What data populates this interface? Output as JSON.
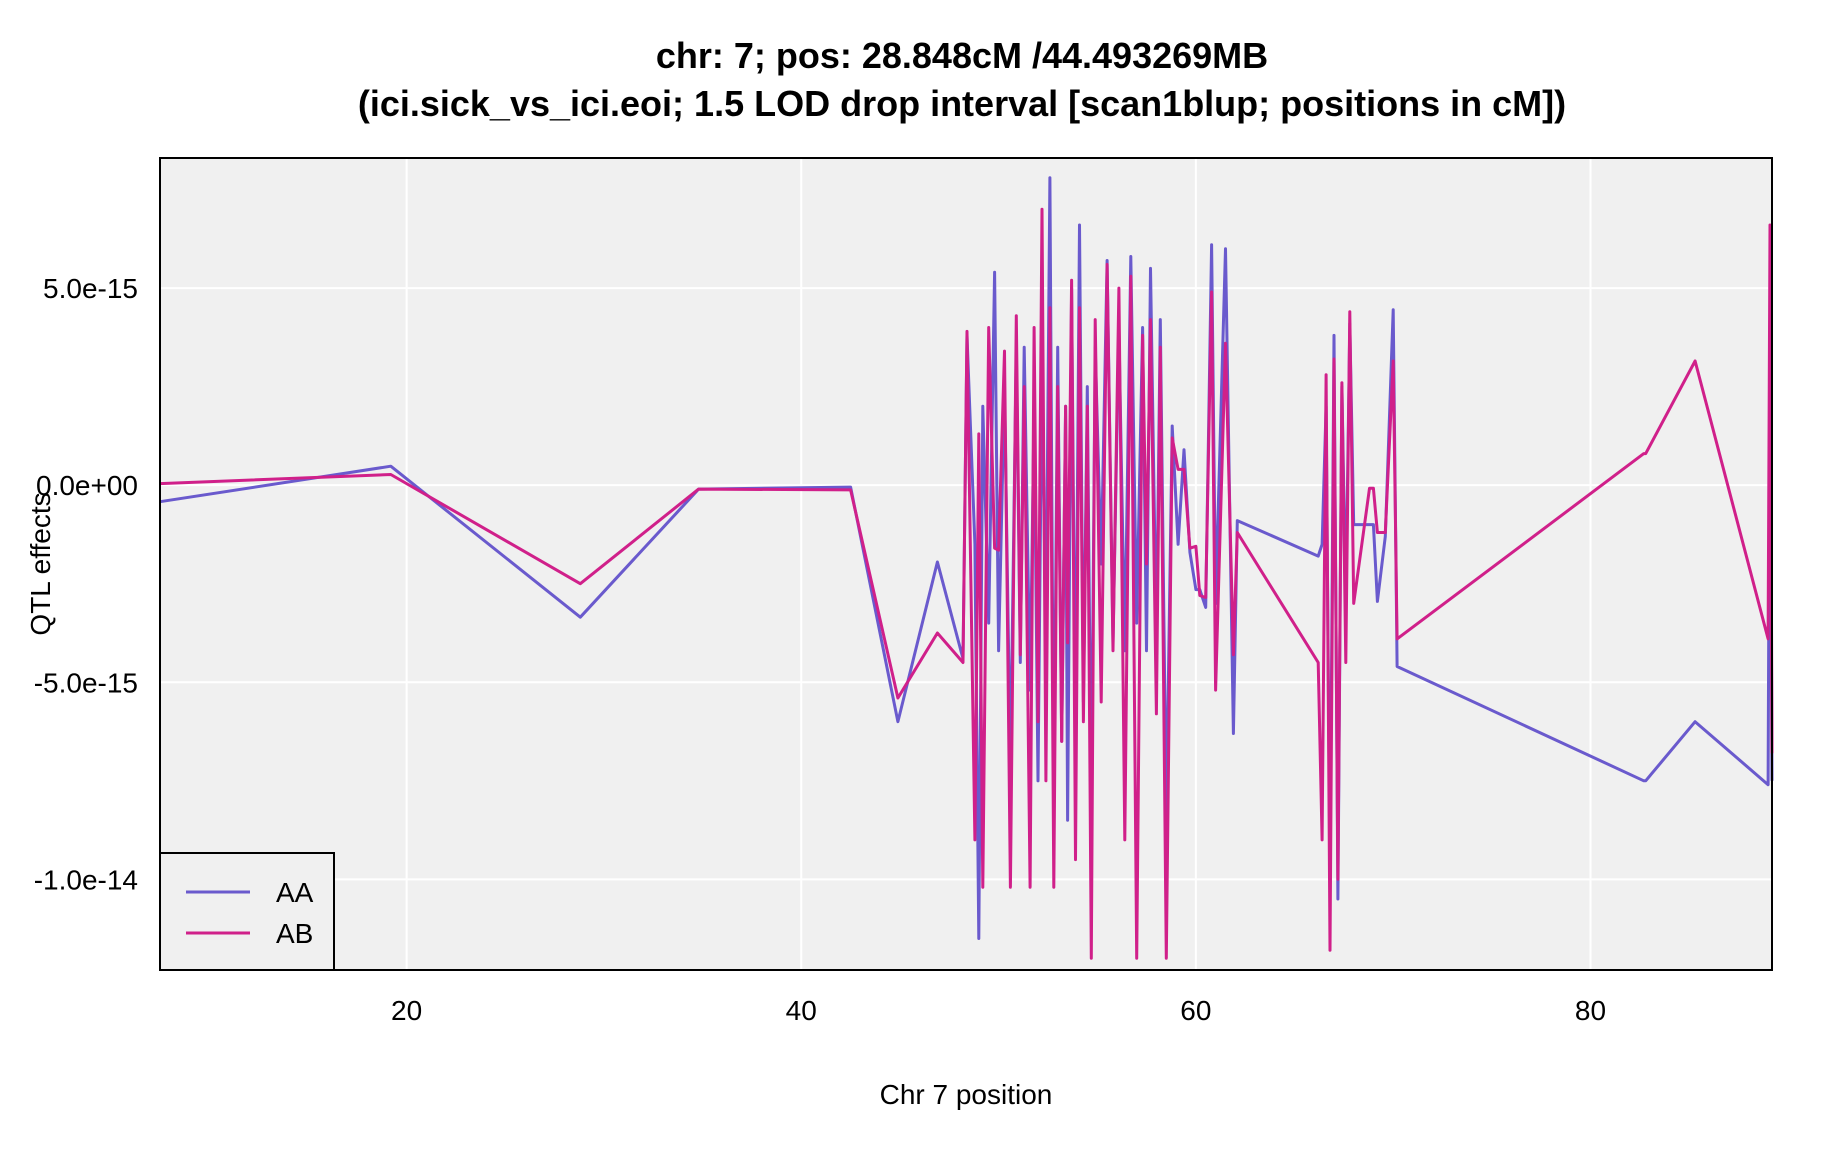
{
  "chart_data": {
    "type": "line",
    "title": "chr: 7; pos: 28.848cM /44.493269MB",
    "subtitle": "(ici.sick_vs_ici.eoi; 1.5 LOD drop interval [scan1blup; positions in cM])",
    "xlabel": "Chr 7 position",
    "ylabel": "QTL effects",
    "xlim": [
      7.5,
      89.2
    ],
    "ylim": [
      -1.23e-14,
      8.3e-15
    ],
    "x_ticks": [
      20,
      40,
      60,
      80
    ],
    "x_tick_labels": [
      "20",
      "40",
      "60",
      "80"
    ],
    "y_ticks": [
      5e-15,
      0,
      -5e-15,
      -1e-14
    ],
    "y_tick_labels": [
      "5.0e-15",
      "0.0e+00",
      "-5.0e-15",
      "-1.0e-14"
    ],
    "grid": true,
    "legend_position": "bottom-left",
    "series": [
      {
        "name": "AA",
        "color": "#6a5acd",
        "x": [
          7.5,
          19.2,
          28.8,
          34.8,
          42.5,
          44.9,
          46.9,
          48.2,
          48.4,
          48.8,
          49.0,
          49.2,
          49.5,
          49.8,
          50.0,
          50.3,
          50.6,
          50.9,
          51.1,
          51.3,
          51.6,
          51.8,
          52.0,
          52.2,
          52.4,
          52.6,
          52.8,
          53.0,
          53.2,
          53.4,
          53.5,
          53.7,
          53.9,
          54.1,
          54.3,
          54.5,
          54.7,
          54.9,
          55.2,
          55.5,
          55.8,
          56.1,
          56.4,
          56.7,
          57.0,
          57.3,
          57.5,
          57.7,
          58.0,
          58.2,
          58.5,
          58.8,
          59.1,
          59.4,
          59.7,
          60.0,
          60.2,
          60.5,
          60.8,
          61.0,
          61.5,
          61.9,
          62.1,
          66.2,
          66.4,
          66.6,
          66.8,
          67.0,
          67.2,
          67.4,
          67.6,
          67.8,
          68.0,
          68.8,
          69.0,
          69.2,
          69.6,
          70.0,
          70.2,
          82.7,
          82.8,
          85.3,
          89.0,
          89.1,
          89.2
        ],
        "values": [
          -4.2e-16,
          4.8e-16,
          -3.35e-15,
          -1e-16,
          -5e-17,
          -6e-15,
          -1.95e-15,
          -4.4e-15,
          3.8e-15,
          -1.5e-15,
          -1.15e-14,
          2e-15,
          -3.5e-15,
          5.4e-15,
          -4.2e-15,
          2.5e-15,
          -7.2e-15,
          3.5e-15,
          -4.5e-15,
          3.5e-15,
          -5.2e-15,
          2e-15,
          -7.5e-15,
          3e-15,
          -4e-15,
          7.8e-15,
          -8.5e-15,
          3.5e-15,
          -6.5e-15,
          2e-15,
          -8.5e-15,
          5e-15,
          -6.5e-15,
          6.6e-15,
          -5.5e-15,
          2.5e-15,
          -8.3e-15,
          3.5e-15,
          -2e-15,
          5.7e-15,
          -4e-15,
          4e-15,
          -4.2e-15,
          5.8e-15,
          -3.5e-15,
          4e-15,
          -4.2e-15,
          5.5e-15,
          -4e-15,
          4.2e-15,
          -8.5e-15,
          1.5e-15,
          -1.5e-15,
          9e-16,
          -1.7e-15,
          -2.65e-15,
          -2.65e-15,
          -3.1e-15,
          6.1e-15,
          -3e-15,
          6e-15,
          -6.3e-15,
          -9e-16,
          -1.8e-15,
          -1.5e-15,
          2e-15,
          -1e-14,
          3.8e-15,
          -1.05e-14,
          2.5e-15,
          -3e-15,
          4.1e-15,
          -1e-15,
          -1e-15,
          -1e-15,
          -2.95e-15,
          -1.3e-15,
          4.45e-15,
          -4.6e-15,
          -7.5e-15,
          -7.5e-15,
          -6e-15,
          -7.6e-15,
          4.3e-15,
          -7.5e-15
        ]
      },
      {
        "name": "AB",
        "color": "#d0208a",
        "x": [
          7.5,
          19.2,
          28.8,
          34.8,
          42.5,
          44.9,
          46.9,
          48.2,
          48.4,
          48.8,
          49.0,
          49.2,
          49.5,
          49.8,
          50.0,
          50.3,
          50.6,
          50.9,
          51.1,
          51.3,
          51.6,
          51.8,
          52.0,
          52.2,
          52.4,
          52.6,
          52.8,
          53.0,
          53.2,
          53.4,
          53.5,
          53.7,
          53.9,
          54.1,
          54.3,
          54.5,
          54.7,
          54.9,
          55.2,
          55.5,
          55.8,
          56.1,
          56.4,
          56.7,
          57.0,
          57.3,
          57.5,
          57.7,
          58.0,
          58.2,
          58.5,
          58.8,
          59.1,
          59.4,
          59.7,
          60.0,
          60.2,
          60.5,
          60.8,
          61.0,
          61.5,
          61.9,
          62.1,
          66.2,
          66.4,
          66.6,
          66.8,
          67.0,
          67.2,
          67.4,
          67.6,
          67.8,
          68.0,
          68.8,
          69.0,
          69.2,
          69.6,
          70.0,
          70.2,
          82.7,
          82.8,
          85.3,
          89.0,
          89.1,
          89.2
        ],
        "values": [
          4e-17,
          2.7e-16,
          -2.5e-15,
          -1e-16,
          -1.2e-16,
          -5.4e-15,
          -3.75e-15,
          -4.5e-15,
          3.9e-15,
          -9e-15,
          1.3e-15,
          -1.02e-14,
          4e-15,
          -1.6e-15,
          -1.65e-15,
          3.4e-15,
          -1.02e-14,
          4.3e-15,
          -4.3e-15,
          2.5e-15,
          -1.02e-14,
          4e-15,
          -6e-15,
          7e-15,
          -7.5e-15,
          4.5e-15,
          -1.02e-14,
          2.5e-15,
          -6.5e-15,
          2e-15,
          -4e-15,
          5.2e-15,
          -9.5e-15,
          4.5e-15,
          -6e-15,
          2e-15,
          -1.2e-14,
          4.2e-15,
          -5.5e-15,
          5.6e-15,
          -4.2e-15,
          5e-15,
          -9e-15,
          5.3e-15,
          -1.2e-14,
          3.8e-15,
          -2e-15,
          4.2e-15,
          -5.8e-15,
          3.5e-15,
          -1.2e-14,
          1.2e-15,
          4e-16,
          4e-16,
          -1.6e-15,
          -1.55e-15,
          -2.8e-15,
          -2.85e-15,
          4.9e-15,
          -5.2e-15,
          3.6e-15,
          -4.3e-15,
          -1.2e-15,
          -4.5e-15,
          -9e-15,
          2.8e-15,
          -1.18e-14,
          3.2e-15,
          -1e-14,
          2.6e-15,
          -4.5e-15,
          4.4e-15,
          -3e-15,
          -8e-17,
          -8e-17,
          -1.2e-15,
          -1.2e-15,
          3.15e-15,
          -3.9e-15,
          8e-16,
          8e-16,
          3.15e-15,
          -3.9e-15,
          6.6e-15,
          -6.8e-15
        ]
      }
    ]
  }
}
